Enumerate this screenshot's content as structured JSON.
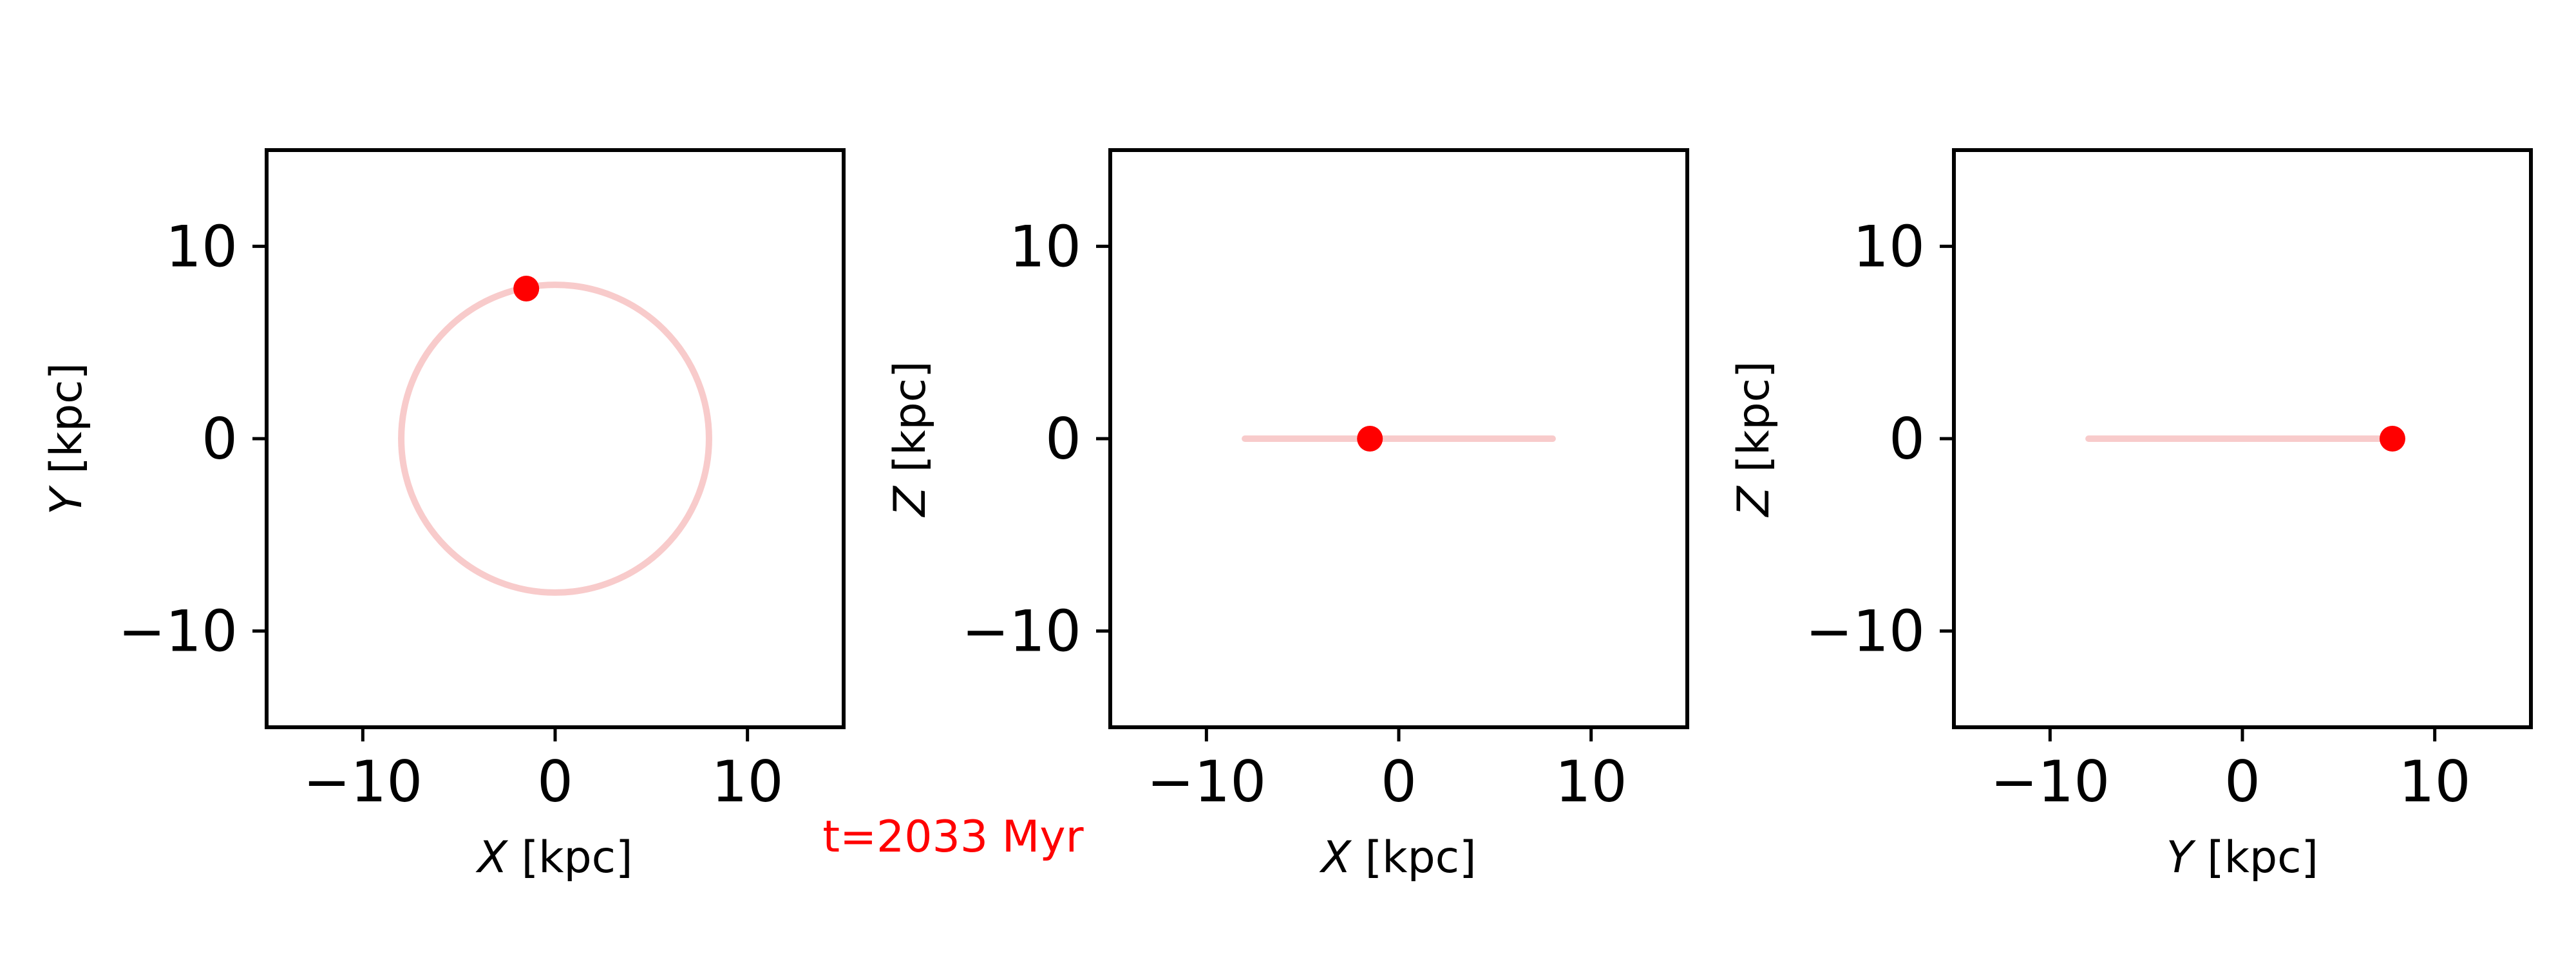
{
  "figure": {
    "time_annotation": "t=2033 Myr",
    "time_color": "#ff0000"
  },
  "colors": {
    "orbit": "#f8cbcb",
    "marker": "#ff0000",
    "axes": "#000000"
  },
  "chart_data": [
    {
      "type": "line",
      "title": "",
      "xlabel": "X [kpc]",
      "ylabel": "Y [kpc]",
      "xlim": [
        -15,
        15
      ],
      "ylim": [
        -15,
        15
      ],
      "xticks": [
        -10,
        0,
        10
      ],
      "yticks": [
        -10,
        0,
        10
      ],
      "xtick_labels": [
        "−10",
        "0",
        "10"
      ],
      "ytick_labels": [
        "−10",
        "0",
        "10"
      ],
      "grid": false,
      "orbit": {
        "shape": "circle",
        "center": [
          0,
          0
        ],
        "radius": 8.0
      },
      "current_position": {
        "x": -1.5,
        "y": 7.8
      }
    },
    {
      "type": "line",
      "title": "",
      "xlabel": "X [kpc]",
      "ylabel": "Z [kpc]",
      "xlim": [
        -15,
        15
      ],
      "ylim": [
        -15,
        15
      ],
      "xticks": [
        -10,
        0,
        10
      ],
      "yticks": [
        -10,
        0,
        10
      ],
      "xtick_labels": [
        "−10",
        "0",
        "10"
      ],
      "ytick_labels": [
        "−10",
        "0",
        "10"
      ],
      "grid": false,
      "orbit": {
        "shape": "segment",
        "x": [
          -8.0,
          8.0
        ],
        "y": [
          0,
          0
        ]
      },
      "current_position": {
        "x": -1.5,
        "y": 0
      }
    },
    {
      "type": "line",
      "title": "",
      "xlabel": "Y [kpc]",
      "ylabel": "Z [kpc]",
      "xlim": [
        -15,
        15
      ],
      "ylim": [
        -15,
        15
      ],
      "xticks": [
        -10,
        0,
        10
      ],
      "yticks": [
        -10,
        0,
        10
      ],
      "xtick_labels": [
        "−10",
        "0",
        "10"
      ],
      "ytick_labels": [
        "−10",
        "0",
        "10"
      ],
      "grid": false,
      "orbit": {
        "shape": "segment",
        "x": [
          -8.0,
          8.0
        ],
        "y": [
          0,
          0
        ]
      },
      "current_position": {
        "x": 7.8,
        "y": 0
      }
    }
  ]
}
